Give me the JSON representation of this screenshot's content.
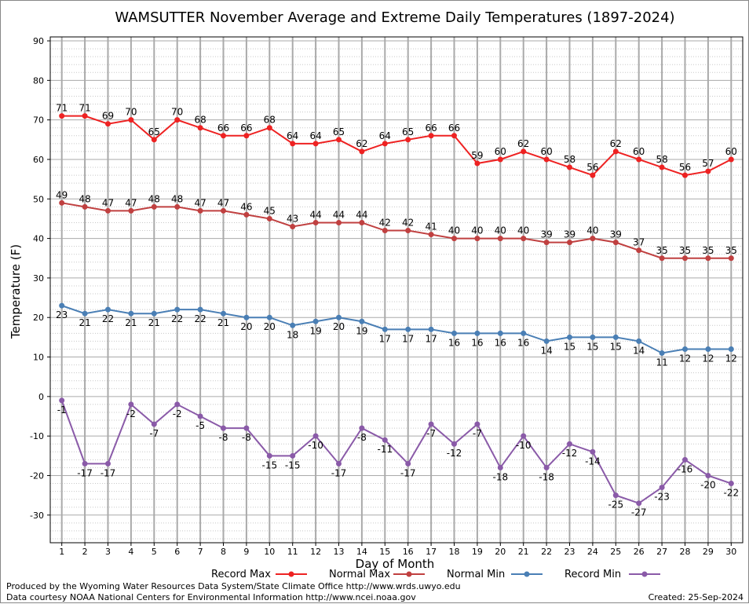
{
  "chart_data": {
    "type": "line",
    "title": "WAMSUTTER November Average and Extreme Daily Temperatures (1897-2024)",
    "xlabel": "Day of Month",
    "ylabel": "Temperature (F)",
    "ylim": [
      -37,
      91
    ],
    "yticks": [
      -30,
      -20,
      -10,
      0,
      10,
      20,
      30,
      40,
      50,
      60,
      70,
      80,
      90
    ],
    "grid": true,
    "legend_position": "bottom",
    "x": [
      1,
      2,
      3,
      4,
      5,
      6,
      7,
      8,
      9,
      10,
      11,
      12,
      13,
      14,
      15,
      16,
      17,
      18,
      19,
      20,
      21,
      22,
      23,
      24,
      25,
      26,
      27,
      28,
      29,
      30
    ],
    "series": [
      {
        "name": "Record Max",
        "color": "#ee2222",
        "label_position": "above",
        "values": [
          71,
          71,
          69,
          70,
          65,
          70,
          68,
          66,
          66,
          68,
          64,
          64,
          65,
          62,
          64,
          65,
          66,
          66,
          59,
          60,
          62,
          60,
          58,
          56,
          62,
          60,
          58,
          56,
          57,
          60
        ]
      },
      {
        "name": "Normal Max",
        "color": "#c04040",
        "label_position": "above",
        "values": [
          49,
          48,
          47,
          47,
          48,
          48,
          47,
          47,
          46,
          45,
          43,
          44,
          44,
          44,
          42,
          42,
          41,
          40,
          40,
          40,
          40,
          39,
          39,
          40,
          39,
          37,
          35,
          35,
          35,
          35
        ]
      },
      {
        "name": "Normal Min",
        "color": "#4a7fb5",
        "label_position": "below",
        "values": [
          23,
          21,
          22,
          21,
          21,
          22,
          22,
          21,
          20,
          20,
          18,
          19,
          20,
          19,
          17,
          17,
          17,
          16,
          16,
          16,
          16,
          14,
          15,
          15,
          15,
          14,
          11,
          12,
          12,
          12
        ]
      },
      {
        "name": "Record Min",
        "color": "#8a5aa8",
        "label_position": "below",
        "values": [
          -1,
          -17,
          -17,
          -2,
          -7,
          -2,
          -5,
          -8,
          -8,
          -15,
          -15,
          -10,
          -17,
          -8,
          -11,
          -17,
          -7,
          -12,
          -7,
          -18,
          -10,
          -18,
          -12,
          -14,
          -25,
          -27,
          -23,
          -16,
          -20,
          -22
        ]
      }
    ]
  },
  "footer": {
    "credit_line1": "Produced by the Wyoming Water Resources Data System/State Climate Office http://www.wrds.uwyo.edu",
    "credit_line2": "Data courtesy NOAA National Centers for Environmental Information http://www.ncei.noaa.gov",
    "created": "Created:  25-Sep-2024"
  }
}
